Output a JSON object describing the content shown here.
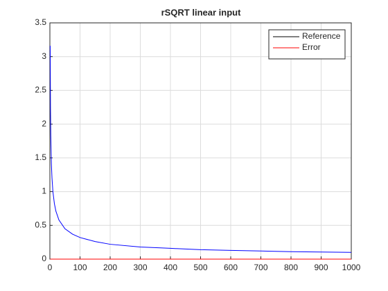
{
  "chart_data": {
    "type": "line",
    "title": "rSQRT linear input",
    "x": [
      1,
      2,
      3,
      5,
      7,
      10,
      15,
      20,
      30,
      50,
      75,
      100,
      150,
      200,
      300,
      400,
      500,
      600,
      700,
      800,
      900,
      1000
    ],
    "series": [
      {
        "name": "Reference",
        "color": "#0000ff",
        "legend_color": "#000000",
        "values": [
          3.16,
          2.24,
          1.83,
          1.41,
          1.2,
          1.0,
          0.82,
          0.71,
          0.58,
          0.45,
          0.37,
          0.32,
          0.26,
          0.22,
          0.18,
          0.16,
          0.14,
          0.13,
          0.12,
          0.11,
          0.105,
          0.1
        ]
      },
      {
        "name": "Error",
        "color": "#ff0000",
        "legend_color": "#ff0000",
        "values": [
          0,
          0,
          0,
          0,
          0,
          0,
          0,
          0,
          0,
          0,
          0,
          0,
          0,
          0,
          0,
          0,
          0,
          0,
          0,
          0,
          0,
          0
        ]
      }
    ],
    "xlim": [
      0,
      1000
    ],
    "xticks": [
      0,
      100,
      200,
      300,
      400,
      500,
      600,
      700,
      800,
      900,
      1000
    ],
    "ylim": [
      0,
      3.5
    ],
    "yticks": [
      0,
      0.5,
      1,
      1.5,
      2,
      2.5,
      3,
      3.5
    ],
    "grid": true,
    "legend": "top-right"
  }
}
